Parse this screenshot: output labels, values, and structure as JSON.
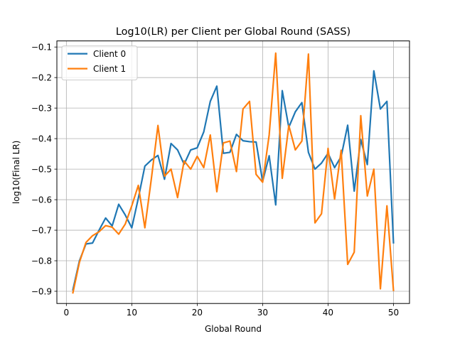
{
  "chart_data": {
    "type": "line",
    "title": "Log10(LR) per Client per Global Round (SASS)",
    "xlabel": "Global Round",
    "ylabel": "log10(Final LR)",
    "xlim": [
      -1.45,
      52.45
    ],
    "ylim": [
      -0.94,
      -0.08
    ],
    "xticks": [
      0,
      10,
      20,
      30,
      40,
      50
    ],
    "yticks": [
      -0.9,
      -0.8,
      -0.7,
      -0.6,
      -0.5,
      -0.4,
      -0.3,
      -0.2,
      -0.1
    ],
    "grid": true,
    "legend_position": "top-left",
    "x": [
      1,
      2,
      3,
      4,
      5,
      6,
      7,
      8,
      9,
      10,
      11,
      12,
      13,
      14,
      15,
      16,
      17,
      18,
      19,
      20,
      21,
      22,
      23,
      24,
      25,
      26,
      27,
      28,
      29,
      30,
      31,
      32,
      33,
      34,
      35,
      36,
      37,
      38,
      39,
      40,
      41,
      42,
      43,
      44,
      45,
      46,
      47,
      48,
      49,
      50
    ],
    "series": [
      {
        "name": "Client 0",
        "color": "#1f77b4",
        "values": [
          -0.895,
          -0.8,
          -0.745,
          -0.742,
          -0.7,
          -0.66,
          -0.686,
          -0.615,
          -0.65,
          -0.692,
          -0.595,
          -0.49,
          -0.47,
          -0.455,
          -0.533,
          -0.416,
          -0.437,
          -0.484,
          -0.437,
          -0.43,
          -0.378,
          -0.278,
          -0.228,
          -0.448,
          -0.445,
          -0.386,
          -0.407,
          -0.41,
          -0.411,
          -0.54,
          -0.456,
          -0.617,
          -0.243,
          -0.363,
          -0.312,
          -0.282,
          -0.445,
          -0.5,
          -0.48,
          -0.448,
          -0.495,
          -0.459,
          -0.356,
          -0.572,
          -0.403,
          -0.485,
          -0.178,
          -0.303,
          -0.278,
          -0.741
        ]
      },
      {
        "name": "Client 1",
        "color": "#ff7f0e",
        "values": [
          -0.905,
          -0.805,
          -0.74,
          -0.718,
          -0.705,
          -0.685,
          -0.69,
          -0.713,
          -0.68,
          -0.62,
          -0.553,
          -0.692,
          -0.53,
          -0.357,
          -0.523,
          -0.5,
          -0.593,
          -0.473,
          -0.5,
          -0.458,
          -0.495,
          -0.388,
          -0.574,
          -0.414,
          -0.408,
          -0.508,
          -0.303,
          -0.278,
          -0.517,
          -0.543,
          -0.388,
          -0.12,
          -0.53,
          -0.357,
          -0.437,
          -0.408,
          -0.123,
          -0.676,
          -0.646,
          -0.432,
          -0.598,
          -0.438,
          -0.812,
          -0.772,
          -0.325,
          -0.588,
          -0.5,
          -0.892,
          -0.62,
          -0.897
        ]
      }
    ]
  }
}
